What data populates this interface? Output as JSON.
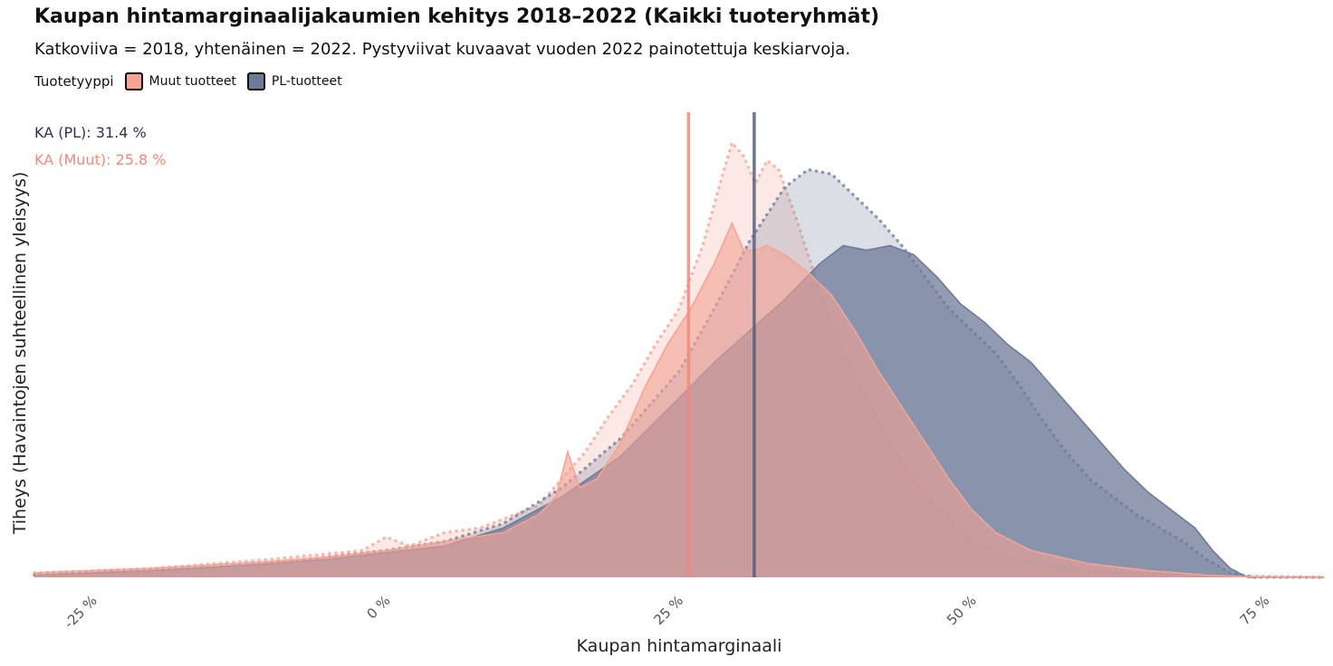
{
  "title": "Kaupan hintamarginaalijakaumien kehitys 2018–2022 (Kaikki tuoteryhmät)",
  "subtitle": "Katkoviiva = 2018, yhtenäinen = 2022. Pystyviivat kuvaavat vuoden 2022 painotettuja keskiarvoja.",
  "legend": {
    "title": "Tuotetyyppi",
    "items": [
      {
        "label": "Muut tuotteet",
        "color": "#F4A394"
      },
      {
        "label": "PL-tuotteet",
        "color": "#6E7A98"
      }
    ]
  },
  "annotations": [
    {
      "text": "KA (PL): 31.4 %",
      "color": "#2A3454"
    },
    {
      "text": "KA (Muut): 25.8 %",
      "color": "#F08A7A"
    }
  ],
  "chart_data": {
    "type": "area",
    "xlabel": "Kaupan hintamarginaali",
    "ylabel": "Tiheys (Havaintojen suhteellinen yleisyys)",
    "x_unit": "%",
    "xlim": [
      -30,
      80
    ],
    "ylim": [
      0,
      1.05
    ],
    "x_ticks": [
      -25,
      0,
      25,
      50,
      75
    ],
    "x_tick_labels": [
      "-25 %",
      "0 %",
      "25 %",
      "50 %",
      "75 %"
    ],
    "grid": false,
    "series": [
      {
        "name": "Muut tuotteet",
        "year": 2018,
        "style": "dotted",
        "color": "#F4A394",
        "opacity": 0.25,
        "points": [
          [
            -30,
            0.01
          ],
          [
            -20,
            0.02
          ],
          [
            -10,
            0.04
          ],
          [
            -2,
            0.06
          ],
          [
            0,
            0.09
          ],
          [
            2,
            0.07
          ],
          [
            5,
            0.1
          ],
          [
            8,
            0.11
          ],
          [
            10,
            0.13
          ],
          [
            13,
            0.16
          ],
          [
            15,
            0.22
          ],
          [
            17,
            0.28
          ],
          [
            19,
            0.36
          ],
          [
            21,
            0.43
          ],
          [
            23,
            0.52
          ],
          [
            25,
            0.6
          ],
          [
            27,
            0.74
          ],
          [
            28.5,
            0.88
          ],
          [
            29.5,
            0.97
          ],
          [
            30.5,
            0.94
          ],
          [
            31.5,
            0.88
          ],
          [
            32.5,
            0.93
          ],
          [
            33.5,
            0.91
          ],
          [
            35,
            0.8
          ],
          [
            37,
            0.64
          ],
          [
            39,
            0.5
          ],
          [
            41,
            0.4
          ],
          [
            43,
            0.3
          ],
          [
            45,
            0.22
          ],
          [
            47,
            0.15
          ],
          [
            50,
            0.08
          ],
          [
            54,
            0.04
          ],
          [
            60,
            0.015
          ],
          [
            70,
            0.005
          ],
          [
            80,
            0
          ]
        ]
      },
      {
        "name": "PL-tuotteet",
        "year": 2018,
        "style": "dotted",
        "color": "#6E7A98",
        "opacity": 0.25,
        "points": [
          [
            -30,
            0.005
          ],
          [
            -20,
            0.015
          ],
          [
            -10,
            0.03
          ],
          [
            0,
            0.06
          ],
          [
            5,
            0.08
          ],
          [
            10,
            0.12
          ],
          [
            15,
            0.2
          ],
          [
            20,
            0.31
          ],
          [
            25,
            0.46
          ],
          [
            28,
            0.6
          ],
          [
            31,
            0.75
          ],
          [
            34,
            0.87
          ],
          [
            36,
            0.91
          ],
          [
            38,
            0.9
          ],
          [
            40,
            0.85
          ],
          [
            42,
            0.8
          ],
          [
            44,
            0.74
          ],
          [
            46,
            0.67
          ],
          [
            48,
            0.6
          ],
          [
            50,
            0.55
          ],
          [
            52,
            0.5
          ],
          [
            54,
            0.43
          ],
          [
            56,
            0.35
          ],
          [
            58,
            0.28
          ],
          [
            60,
            0.22
          ],
          [
            62,
            0.18
          ],
          [
            64,
            0.14
          ],
          [
            66,
            0.11
          ],
          [
            68,
            0.08
          ],
          [
            70,
            0.04
          ],
          [
            72,
            0.01
          ],
          [
            74,
            0
          ],
          [
            80,
            0
          ]
        ]
      },
      {
        "name": "PL-tuotteet",
        "year": 2022,
        "style": "solid",
        "color": "#6E7A98",
        "opacity": 0.75,
        "points": [
          [
            -30,
            0.005
          ],
          [
            -20,
            0.015
          ],
          [
            -10,
            0.03
          ],
          [
            -5,
            0.04
          ],
          [
            0,
            0.055
          ],
          [
            5,
            0.07
          ],
          [
            10,
            0.11
          ],
          [
            15,
            0.18
          ],
          [
            20,
            0.27
          ],
          [
            25,
            0.4
          ],
          [
            28,
            0.48
          ],
          [
            31,
            0.55
          ],
          [
            34,
            0.62
          ],
          [
            37,
            0.7
          ],
          [
            39,
            0.74
          ],
          [
            41,
            0.73
          ],
          [
            43,
            0.74
          ],
          [
            45,
            0.72
          ],
          [
            47,
            0.67
          ],
          [
            49,
            0.61
          ],
          [
            51,
            0.57
          ],
          [
            53,
            0.52
          ],
          [
            55,
            0.48
          ],
          [
            57,
            0.42
          ],
          [
            59,
            0.36
          ],
          [
            61,
            0.3
          ],
          [
            63,
            0.24
          ],
          [
            65,
            0.19
          ],
          [
            67,
            0.15
          ],
          [
            69,
            0.11
          ],
          [
            70.5,
            0.06
          ],
          [
            72,
            0.02
          ],
          [
            73.5,
            0
          ],
          [
            80,
            0
          ]
        ]
      },
      {
        "name": "Muut tuotteet",
        "year": 2022,
        "style": "solid",
        "color": "#F4A394",
        "opacity": 0.6,
        "points": [
          [
            -30,
            0.01
          ],
          [
            -20,
            0.02
          ],
          [
            -10,
            0.035
          ],
          [
            -5,
            0.045
          ],
          [
            0,
            0.06
          ],
          [
            5,
            0.08
          ],
          [
            10,
            0.1
          ],
          [
            13,
            0.14
          ],
          [
            14.5,
            0.18
          ],
          [
            15.5,
            0.28
          ],
          [
            16.5,
            0.2
          ],
          [
            18,
            0.22
          ],
          [
            20,
            0.3
          ],
          [
            22,
            0.42
          ],
          [
            24,
            0.52
          ],
          [
            26,
            0.6
          ],
          [
            28,
            0.7
          ],
          [
            29.5,
            0.79
          ],
          [
            30.5,
            0.73
          ],
          [
            31.5,
            0.73
          ],
          [
            32.5,
            0.74
          ],
          [
            34,
            0.72
          ],
          [
            36,
            0.68
          ],
          [
            38,
            0.63
          ],
          [
            40,
            0.55
          ],
          [
            42,
            0.46
          ],
          [
            44,
            0.38
          ],
          [
            46,
            0.3
          ],
          [
            48,
            0.22
          ],
          [
            50,
            0.15
          ],
          [
            52,
            0.1
          ],
          [
            55,
            0.06
          ],
          [
            60,
            0.03
          ],
          [
            65,
            0.015
          ],
          [
            70,
            0.005
          ],
          [
            75,
            0
          ],
          [
            80,
            0
          ]
        ]
      }
    ],
    "reference_lines": [
      {
        "series": "Muut tuotteet",
        "x": 25.8,
        "color": "#F08A7A"
      },
      {
        "series": "PL-tuotteet",
        "x": 31.4,
        "color": "#545F80"
      }
    ]
  }
}
